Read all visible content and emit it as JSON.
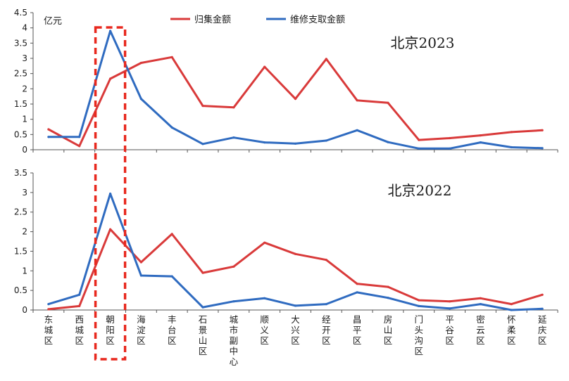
{
  "chart_data": [
    {
      "type": "line",
      "title": "北京2023",
      "unit_label": "亿元",
      "ylim": [
        0,
        4.5
      ],
      "y_ticks": [
        0,
        0.5,
        1,
        1.5,
        2,
        2.5,
        3,
        3.5,
        4,
        4.5
      ],
      "categories": [
        "东城区",
        "西城区",
        "朝阳区",
        "海淀区",
        "丰台区",
        "石景山区",
        "城市副中心",
        "顺义区",
        "大兴区",
        "经开区",
        "昌平区",
        "房山区",
        "门头沟区",
        "平谷区",
        "密云区",
        "怀柔区",
        "延庆区"
      ],
      "series": [
        {
          "name": "归集金额",
          "color": "#d93a3a",
          "values": [
            0.67,
            0.12,
            2.33,
            2.85,
            3.04,
            1.44,
            1.39,
            2.72,
            1.67,
            2.98,
            1.62,
            1.54,
            0.32,
            0.38,
            0.47,
            0.58,
            0.64
          ]
        },
        {
          "name": "维修支取金额",
          "color": "#2f6bc0",
          "values": [
            0.42,
            0.42,
            3.9,
            1.67,
            0.73,
            0.19,
            0.4,
            0.24,
            0.2,
            0.3,
            0.64,
            0.25,
            0.04,
            0.04,
            0.24,
            0.08,
            0.05
          ]
        }
      ]
    },
    {
      "type": "line",
      "title": "北京2022",
      "ylim": [
        0,
        3.5
      ],
      "y_ticks": [
        0,
        0.5,
        1,
        1.5,
        2,
        2.5,
        3,
        3.5
      ],
      "categories": [
        "东城区",
        "西城区",
        "朝阳区",
        "海淀区",
        "丰台区",
        "石景山区",
        "城市副中心",
        "顺义区",
        "大兴区",
        "经开区",
        "昌平区",
        "房山区",
        "门头沟区",
        "平谷区",
        "密云区",
        "怀柔区",
        "延庆区"
      ],
      "series": [
        {
          "name": "归集金额",
          "color": "#d93a3a",
          "values": [
            0.02,
            0.1,
            2.06,
            1.22,
            1.94,
            0.95,
            1.11,
            1.72,
            1.43,
            1.28,
            0.67,
            0.59,
            0.25,
            0.22,
            0.3,
            0.15,
            0.39
          ]
        },
        {
          "name": "维修支取金额",
          "color": "#2f6bc0",
          "values": [
            0.15,
            0.39,
            2.97,
            0.88,
            0.86,
            0.07,
            0.22,
            0.3,
            0.11,
            0.15,
            0.45,
            0.31,
            0.1,
            0.04,
            0.15,
            0.0,
            0.03
          ]
        }
      ]
    }
  ],
  "highlight": {
    "category": "朝阳区",
    "color": "#e8281e"
  }
}
